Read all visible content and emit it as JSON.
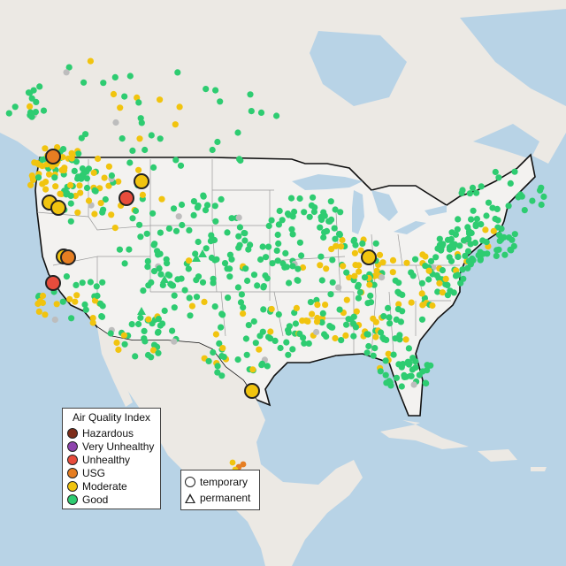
{
  "legend": {
    "title": "Air Quality Index",
    "categories": [
      {
        "label": "Hazardous",
        "color": "#7e2d1a"
      },
      {
        "label": "Very Unhealthy",
        "color": "#8e44ad"
      },
      {
        "label": "Unhealthy",
        "color": "#e74c3c"
      },
      {
        "label": "USG",
        "color": "#e67e22"
      },
      {
        "label": "Moderate",
        "color": "#f1c40f"
      },
      {
        "label": "Good",
        "color": "#2ecc71"
      }
    ]
  },
  "monitor_types": {
    "temporary": "temporary",
    "permanent": "permanent"
  },
  "colors": {
    "water": "#b8d3e6",
    "land": "#ece9e4",
    "us_land": "#f3f2f0",
    "state_border": "#9a9a9a",
    "country_border": "#111111",
    "no_data": "#bdbdbd"
  }
}
